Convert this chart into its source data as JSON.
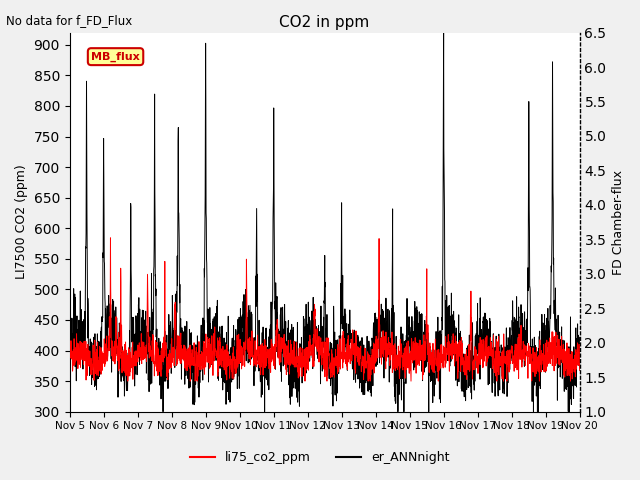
{
  "title": "CO2 in ppm",
  "suptitle": "No data for f_FD_Flux",
  "ylabel_left": "LI7500 CO2 (ppm)",
  "ylabel_right": "FD Chamber-flux",
  "ylim_left": [
    300,
    920
  ],
  "ylim_right": [
    1.0,
    6.5
  ],
  "yticks_left": [
    300,
    350,
    400,
    450,
    500,
    550,
    600,
    650,
    700,
    750,
    800,
    850,
    900
  ],
  "yticks_right": [
    1.0,
    1.5,
    2.0,
    2.5,
    3.0,
    3.5,
    4.0,
    4.5,
    5.0,
    5.5,
    6.0,
    6.5
  ],
  "xlabel_ticks": [
    "Nov 5",
    "Nov 6",
    "Nov 7",
    "Nov 8",
    "Nov 9",
    "Nov 10",
    "Nov 11",
    "Nov 12",
    "Nov 13",
    "Nov 14",
    "Nov 15",
    "Nov 16",
    "Nov 17",
    "Nov 18",
    "Nov 19",
    "Nov 20"
  ],
  "legend_entries": [
    "li75_co2_ppm",
    "er_ANNnight"
  ],
  "legend_colors": [
    "red",
    "black"
  ],
  "mb_flux_label": "MB_flux",
  "mb_flux_color": "#cc0000",
  "mb_flux_bg": "#ffff99",
  "mb_flux_border": "#cc0000",
  "line_co2_color": "red",
  "line_ann_color": "black",
  "bg_color": "#f0f0f0",
  "plot_bg": "#ffffff",
  "grid_color": "#ffffff",
  "n_points": 2300
}
